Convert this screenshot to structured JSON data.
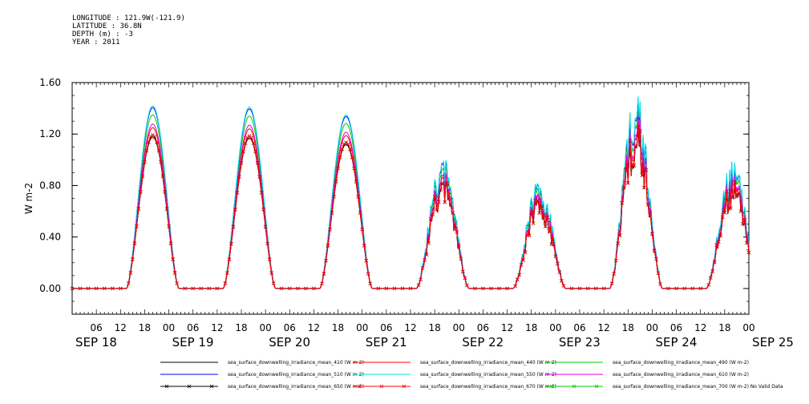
{
  "header": {
    "lines": [
      "LONGITUDE : 121.9W(-121.9)",
      "LATITUDE : 36.8N",
      "DEPTH (m) : -3",
      "YEAR : 2011"
    ]
  },
  "chart_data": {
    "type": "line",
    "title": "",
    "ylabel": "W m-2",
    "ylim": [
      -0.2,
      1.6
    ],
    "yticks": [
      "0.00",
      "0.40",
      "0.80",
      "1.20",
      "1.60"
    ],
    "ytick_values": [
      0.0,
      0.4,
      0.8,
      1.2,
      1.6
    ],
    "hour_ticks": [
      "06",
      "12",
      "18",
      "00",
      "06",
      "12",
      "18",
      "00",
      "06",
      "12",
      "18",
      "00",
      "06",
      "12",
      "18",
      "00",
      "06",
      "12",
      "18",
      "00",
      "06",
      "12",
      "18",
      "00",
      "06",
      "12",
      "18",
      "00"
    ],
    "date_labels": [
      "SEP 18",
      "SEP 19",
      "SEP 20",
      "SEP 21",
      "SEP 22",
      "SEP 23",
      "SEP 24",
      "SEP 25"
    ],
    "date_hours": [
      0,
      24,
      48,
      72,
      96,
      120,
      144,
      168
    ],
    "x_range_hours": [
      0,
      168
    ],
    "day_peak_hours": [
      20,
      44,
      68,
      92,
      116,
      140,
      164
    ],
    "days": [
      {
        "label": "SEP 18",
        "peak_550": 1.42,
        "peak_670": 1.12
      },
      {
        "label": "SEP 19",
        "peak_550": 1.41,
        "peak_670": 1.12
      },
      {
        "label": "SEP 20",
        "peak_550": 1.35,
        "peak_670": 1.04
      },
      {
        "label": "SEP 21",
        "peak_550": 0.9,
        "peak_670": 0.6
      },
      {
        "label": "SEP 22",
        "peak_550": 0.75,
        "peak_670": 0.58
      },
      {
        "label": "SEP 23",
        "peak_550": 1.33,
        "peak_670": 1.0
      },
      {
        "label": "SEP 24",
        "peak_550": 0.88,
        "peak_670": 0.58
      }
    ],
    "series": [
      {
        "name": "sea_surface_downwelling_irradiance_mean_410 (W m-2)",
        "color": "#000000",
        "scale": 0.83,
        "marker": "none"
      },
      {
        "name": "sea_surface_downwelling_irradiance_mean_440 (W m-2)",
        "color": "#ff0000",
        "scale": 0.88,
        "marker": "none"
      },
      {
        "name": "sea_surface_downwelling_irradiance_mean_490 (W m-2)",
        "color": "#00cc00",
        "scale": 0.95,
        "marker": "none"
      },
      {
        "name": "sea_surface_downwelling_irradiance_mean_510 (W m-2)",
        "color": "#0000ff",
        "scale": 0.99,
        "marker": "none"
      },
      {
        "name": "sea_surface_downwelling_irradiance_mean_550 (W m-2)",
        "color": "#00e5e5",
        "scale": 1.0,
        "marker": "none"
      },
      {
        "name": "sea_surface_downwelling_irradiance_mean_610 (W m-2)",
        "color": "#e000e0",
        "scale": 0.9,
        "marker": "none"
      },
      {
        "name": "sea_surface_downwelling_irradiance_mean_650 (W m-2)",
        "color": "#000000",
        "scale": 0.84,
        "marker": "x"
      },
      {
        "name": "sea_surface_downwelling_irradiance_mean_670 (W m-2)",
        "color": "#ff0000",
        "scale": 0.84,
        "marker": "x"
      },
      {
        "name": "sea_surface_downwelling_irradiance_mean_700 (W m-2) No Valid Data",
        "color": "#00cc00",
        "scale": 0.0,
        "marker": "x"
      }
    ]
  }
}
